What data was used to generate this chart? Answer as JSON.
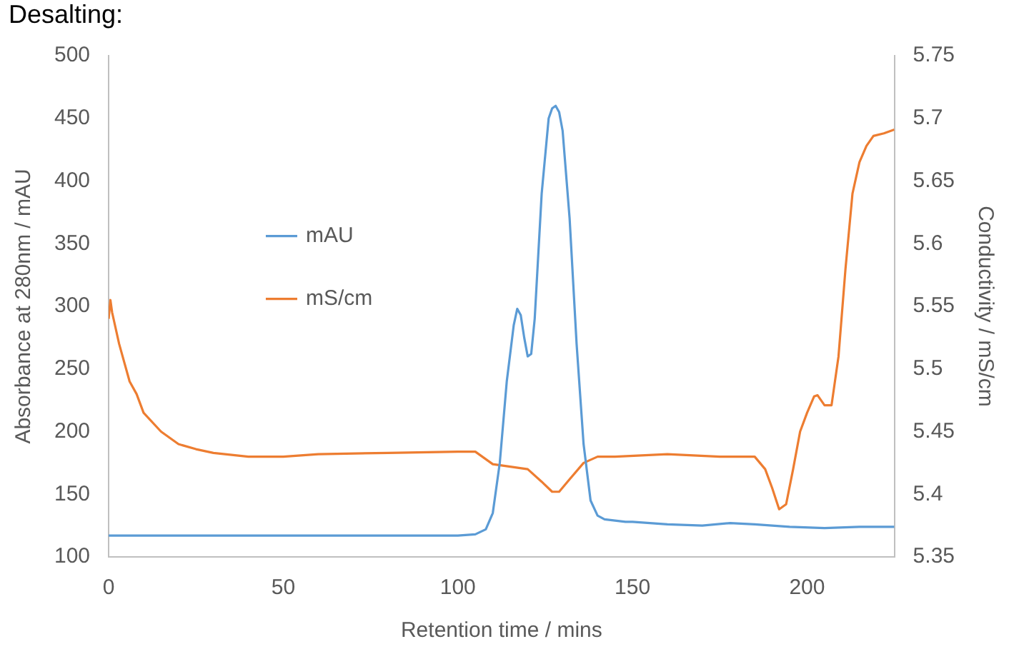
{
  "chart_data": {
    "type": "line",
    "title": "Desalting:",
    "xlabel": "Retention time / mins",
    "ylabel": "Absorbance at 280nm / mAU",
    "y2label": "Conductivity / mS/cm",
    "xlim": [
      0,
      225
    ],
    "xticks": [
      0,
      50,
      100,
      150,
      200
    ],
    "ylim": [
      100,
      500
    ],
    "yticks": [
      100,
      150,
      200,
      250,
      300,
      350,
      400,
      450,
      500
    ],
    "y2lim": [
      5.35,
      5.75
    ],
    "y2ticks": [
      5.35,
      5.4,
      5.45,
      5.5,
      5.55,
      5.6,
      5.65,
      5.7,
      5.75
    ],
    "grid": false,
    "legend": "left",
    "marker": "none",
    "line_style": "solid",
    "series": [
      {
        "name": "mAU",
        "color": "#5b9bd5",
        "x": [
          0,
          50,
          100,
          105,
          108,
          110,
          112,
          114,
          116,
          117,
          118,
          119,
          120,
          121,
          122,
          124,
          126,
          127,
          128,
          129,
          130,
          132,
          134,
          136,
          138,
          140,
          142,
          145,
          148,
          150,
          160,
          170,
          178,
          185,
          195,
          205,
          215,
          225
        ],
        "values": [
          117,
          117,
          117,
          118,
          122,
          135,
          175,
          240,
          285,
          298,
          293,
          275,
          260,
          262,
          290,
          390,
          450,
          458,
          460,
          455,
          440,
          370,
          270,
          190,
          145,
          133,
          130,
          129,
          128,
          128,
          126,
          125,
          127,
          126,
          124,
          123,
          124,
          124
        ]
      },
      {
        "name": "mS/cm",
        "color": "#ed7d31",
        "axis": "y2",
        "x": [
          0,
          0.5,
          1,
          3,
          6,
          8,
          10,
          15,
          20,
          25,
          30,
          40,
          50,
          60,
          80,
          100,
          105,
          110,
          115,
          120,
          124,
          127,
          129,
          132,
          136,
          140,
          145,
          160,
          175,
          185,
          188,
          190,
          192,
          194,
          196,
          198,
          200,
          202,
          203,
          205,
          207,
          209,
          211,
          213,
          215,
          217,
          219,
          222,
          225
        ],
        "values": [
          5.54,
          5.555,
          5.545,
          5.52,
          5.49,
          5.48,
          5.465,
          5.45,
          5.44,
          5.436,
          5.433,
          5.43,
          5.43,
          5.432,
          5.433,
          5.434,
          5.434,
          5.424,
          5.422,
          5.42,
          5.41,
          5.402,
          5.402,
          5.412,
          5.425,
          5.43,
          5.43,
          5.432,
          5.43,
          5.43,
          5.42,
          5.405,
          5.388,
          5.392,
          5.42,
          5.45,
          5.465,
          5.478,
          5.479,
          5.471,
          5.471,
          5.51,
          5.58,
          5.64,
          5.665,
          5.678,
          5.686,
          5.688,
          5.691
        ]
      }
    ]
  }
}
